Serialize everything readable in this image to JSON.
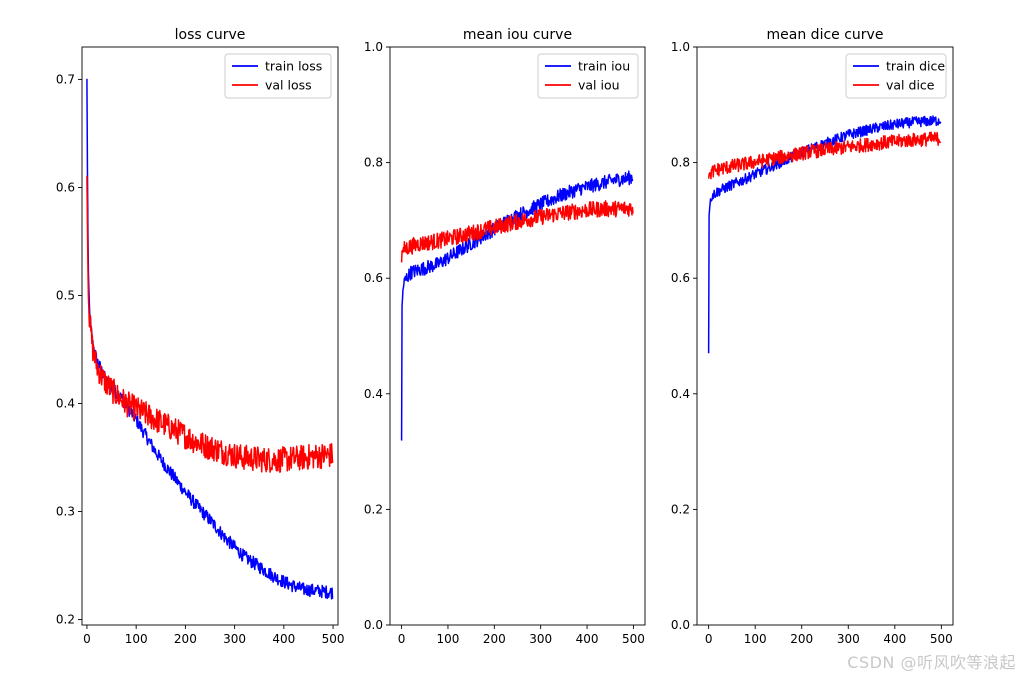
{
  "watermark": "CSDN @听风吹等浪起",
  "colors": {
    "train": "#0000ff",
    "val": "#ff0000",
    "axis": "#000000"
  },
  "chart_data": [
    {
      "type": "line",
      "title": "loss curve",
      "xlabel": "",
      "ylabel": "",
      "xlim": [
        -10,
        510
      ],
      "ylim": [
        0.195,
        0.73
      ],
      "xticks": [
        0,
        100,
        200,
        300,
        400,
        500
      ],
      "yticks": [
        0.2,
        0.3,
        0.4,
        0.5,
        0.6,
        0.7
      ],
      "ytick_labels": [
        "0.2",
        "0.3",
        "0.4",
        "0.5",
        "0.6",
        "0.7"
      ],
      "legend_position": "top-right",
      "series": [
        {
          "name": "train loss",
          "color": "#0000ff",
          "noise": 0.006,
          "x": [
            0,
            1,
            2,
            3,
            5,
            8,
            12,
            20,
            30,
            40,
            50,
            60,
            70,
            80,
            100,
            120,
            140,
            160,
            180,
            200,
            220,
            240,
            260,
            280,
            300,
            320,
            340,
            360,
            380,
            400,
            420,
            440,
            460,
            480,
            499
          ],
          "y": [
            0.7,
            0.62,
            0.56,
            0.52,
            0.49,
            0.47,
            0.455,
            0.44,
            0.43,
            0.42,
            0.415,
            0.41,
            0.405,
            0.398,
            0.385,
            0.37,
            0.355,
            0.342,
            0.33,
            0.318,
            0.307,
            0.297,
            0.287,
            0.276,
            0.267,
            0.258,
            0.252,
            0.246,
            0.24,
            0.235,
            0.231,
            0.228,
            0.227,
            0.226,
            0.225
          ]
        },
        {
          "name": "val loss",
          "color": "#ff0000",
          "noise": 0.012,
          "x": [
            0,
            1,
            2,
            3,
            5,
            8,
            12,
            20,
            30,
            40,
            50,
            60,
            70,
            80,
            100,
            120,
            140,
            160,
            180,
            200,
            220,
            240,
            260,
            280,
            300,
            320,
            340,
            360,
            380,
            400,
            420,
            440,
            460,
            480,
            499
          ],
          "y": [
            0.61,
            0.57,
            0.53,
            0.5,
            0.48,
            0.465,
            0.45,
            0.435,
            0.425,
            0.418,
            0.413,
            0.408,
            0.404,
            0.4,
            0.395,
            0.39,
            0.385,
            0.38,
            0.375,
            0.37,
            0.365,
            0.361,
            0.358,
            0.355,
            0.352,
            0.35,
            0.349,
            0.348,
            0.348,
            0.348,
            0.349,
            0.35,
            0.351,
            0.352,
            0.352
          ]
        }
      ]
    },
    {
      "type": "line",
      "title": "mean iou curve",
      "xlabel": "",
      "ylabel": "",
      "xlim": [
        -25,
        525
      ],
      "ylim": [
        0.0,
        1.0
      ],
      "xticks": [
        0,
        100,
        200,
        300,
        400,
        500
      ],
      "yticks": [
        0.0,
        0.2,
        0.4,
        0.6,
        0.8,
        1.0
      ],
      "ytick_labels": [
        "0.0",
        "0.2",
        "0.4",
        "0.6",
        "0.8",
        "1.0"
      ],
      "legend_position": "top-right",
      "series": [
        {
          "name": "train iou",
          "color": "#0000ff",
          "noise": 0.012,
          "x": [
            0,
            1,
            3,
            5,
            10,
            20,
            40,
            60,
            80,
            100,
            120,
            140,
            160,
            180,
            200,
            220,
            240,
            260,
            280,
            300,
            320,
            340,
            360,
            380,
            400,
            420,
            440,
            460,
            480,
            499
          ],
          "y": [
            0.32,
            0.55,
            0.58,
            0.59,
            0.6,
            0.61,
            0.615,
            0.62,
            0.625,
            0.635,
            0.645,
            0.655,
            0.665,
            0.675,
            0.685,
            0.695,
            0.705,
            0.712,
            0.72,
            0.728,
            0.735,
            0.742,
            0.748,
            0.754,
            0.758,
            0.762,
            0.766,
            0.77,
            0.772,
            0.775
          ]
        },
        {
          "name": "val iou",
          "color": "#ff0000",
          "noise": 0.014,
          "x": [
            0,
            1,
            3,
            5,
            10,
            20,
            40,
            60,
            80,
            100,
            120,
            140,
            160,
            180,
            200,
            220,
            240,
            260,
            280,
            300,
            320,
            340,
            360,
            380,
            400,
            420,
            440,
            460,
            480,
            499
          ],
          "y": [
            0.63,
            0.645,
            0.648,
            0.65,
            0.652,
            0.655,
            0.66,
            0.662,
            0.665,
            0.668,
            0.672,
            0.676,
            0.68,
            0.684,
            0.688,
            0.692,
            0.696,
            0.7,
            0.703,
            0.706,
            0.709,
            0.712,
            0.714,
            0.716,
            0.718,
            0.719,
            0.72,
            0.72,
            0.721,
            0.721
          ]
        }
      ]
    },
    {
      "type": "line",
      "title": "mean dice curve",
      "xlabel": "",
      "ylabel": "",
      "xlim": [
        -25,
        525
      ],
      "ylim": [
        0.0,
        1.0
      ],
      "xticks": [
        0,
        100,
        200,
        300,
        400,
        500
      ],
      "yticks": [
        0.0,
        0.2,
        0.4,
        0.6,
        0.8,
        1.0
      ],
      "ytick_labels": [
        "0.0",
        "0.2",
        "0.4",
        "0.6",
        "0.8",
        "1.0"
      ],
      "legend_position": "top-right",
      "series": [
        {
          "name": "train dice",
          "color": "#0000ff",
          "noise": 0.009,
          "x": [
            0,
            1,
            3,
            5,
            10,
            20,
            40,
            60,
            80,
            100,
            120,
            140,
            160,
            180,
            200,
            220,
            240,
            260,
            280,
            300,
            320,
            340,
            360,
            380,
            400,
            420,
            440,
            460,
            480,
            499
          ],
          "y": [
            0.47,
            0.71,
            0.73,
            0.74,
            0.745,
            0.75,
            0.758,
            0.765,
            0.772,
            0.78,
            0.787,
            0.795,
            0.802,
            0.81,
            0.817,
            0.824,
            0.83,
            0.836,
            0.842,
            0.848,
            0.852,
            0.856,
            0.86,
            0.863,
            0.866,
            0.868,
            0.87,
            0.871,
            0.872,
            0.873
          ]
        },
        {
          "name": "val dice",
          "color": "#ff0000",
          "noise": 0.012,
          "x": [
            0,
            1,
            3,
            5,
            10,
            20,
            40,
            60,
            80,
            100,
            120,
            140,
            160,
            180,
            200,
            220,
            240,
            260,
            280,
            300,
            320,
            340,
            360,
            380,
            400,
            420,
            440,
            460,
            480,
            499
          ],
          "y": [
            0.775,
            0.778,
            0.78,
            0.782,
            0.785,
            0.788,
            0.792,
            0.795,
            0.798,
            0.801,
            0.804,
            0.807,
            0.81,
            0.813,
            0.816,
            0.819,
            0.821,
            0.823,
            0.825,
            0.827,
            0.829,
            0.831,
            0.833,
            0.835,
            0.836,
            0.838,
            0.839,
            0.84,
            0.841,
            0.842
          ]
        }
      ]
    }
  ]
}
